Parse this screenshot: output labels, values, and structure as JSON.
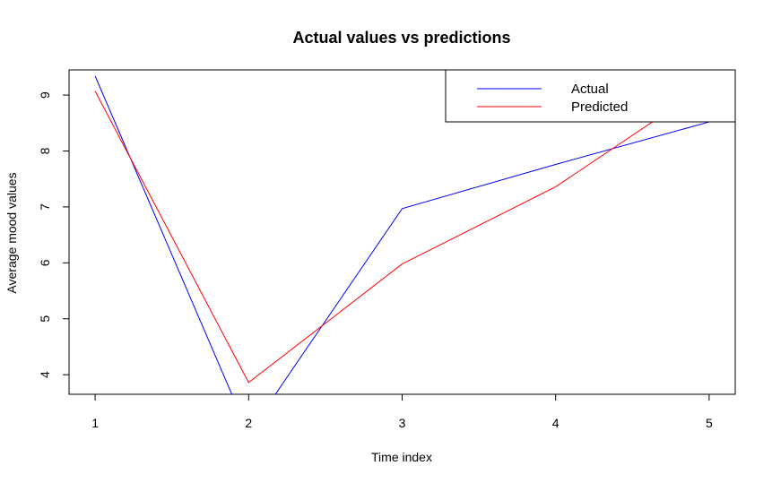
{
  "chart_data": {
    "type": "line",
    "title": "Actual values vs predictions",
    "xlabel": "Time index",
    "ylabel": "Average mood values",
    "x": [
      1,
      2,
      3,
      4,
      5
    ],
    "x_ticks": [
      "1",
      "2",
      "3",
      "4",
      "5"
    ],
    "y_ticks": [
      "4",
      "5",
      "6",
      "7",
      "8",
      "9"
    ],
    "xlim": [
      0.83,
      5.17
    ],
    "ylim": [
      3.65,
      9.45
    ],
    "grid": false,
    "legend_position": "top-right",
    "series": [
      {
        "name": "Actual",
        "color": "#0000ff",
        "values": [
          9.34,
          2.95,
          6.97,
          7.76,
          8.52
        ]
      },
      {
        "name": "Predicted",
        "color": "#ff0000",
        "values": [
          9.07,
          3.86,
          5.98,
          7.36,
          9.2
        ]
      }
    ]
  }
}
